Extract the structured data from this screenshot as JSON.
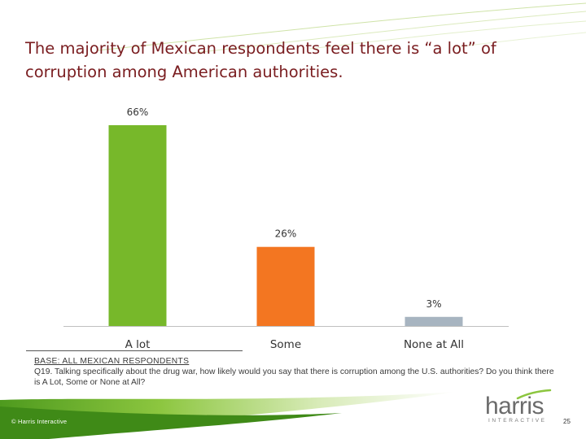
{
  "slide": {
    "title_lines": [
      "The majority of Mexican respondents feel there is “a lot” of",
      "corruption among American authorities."
    ]
  },
  "chart_data": {
    "type": "bar",
    "title": "The majority of Mexican respondents feel there is “a lot” of corruption among American authorities.",
    "categories": [
      "A lot",
      "Some",
      "None at All"
    ],
    "values": [
      66,
      26,
      3
    ],
    "labels": [
      "66%",
      "26%",
      "3%"
    ],
    "colors": [
      "#77b82a",
      "#f37621",
      "#a7b4c0"
    ],
    "unit": "%",
    "ylim": [
      0,
      66
    ],
    "xlabel": "",
    "ylabel": "",
    "grid": false,
    "legend": "none"
  },
  "base": {
    "title": "BASE: ALL MEXICAN RESPONDENTS",
    "question": "Q19. Talking specifically about the drug war, how likely would you say that there is corruption among the U.S. authorities? Do you think there is A Lot, Some or None at All?"
  },
  "footer": {
    "copyright": "© Harris Interactive",
    "logo_word": "harris",
    "logo_sub": "INTERACTIVE",
    "page_number": "25"
  },
  "colors": {
    "title": "#7a1d20",
    "swoosh_green": "#77b82a",
    "text": "#3a3a3a"
  }
}
